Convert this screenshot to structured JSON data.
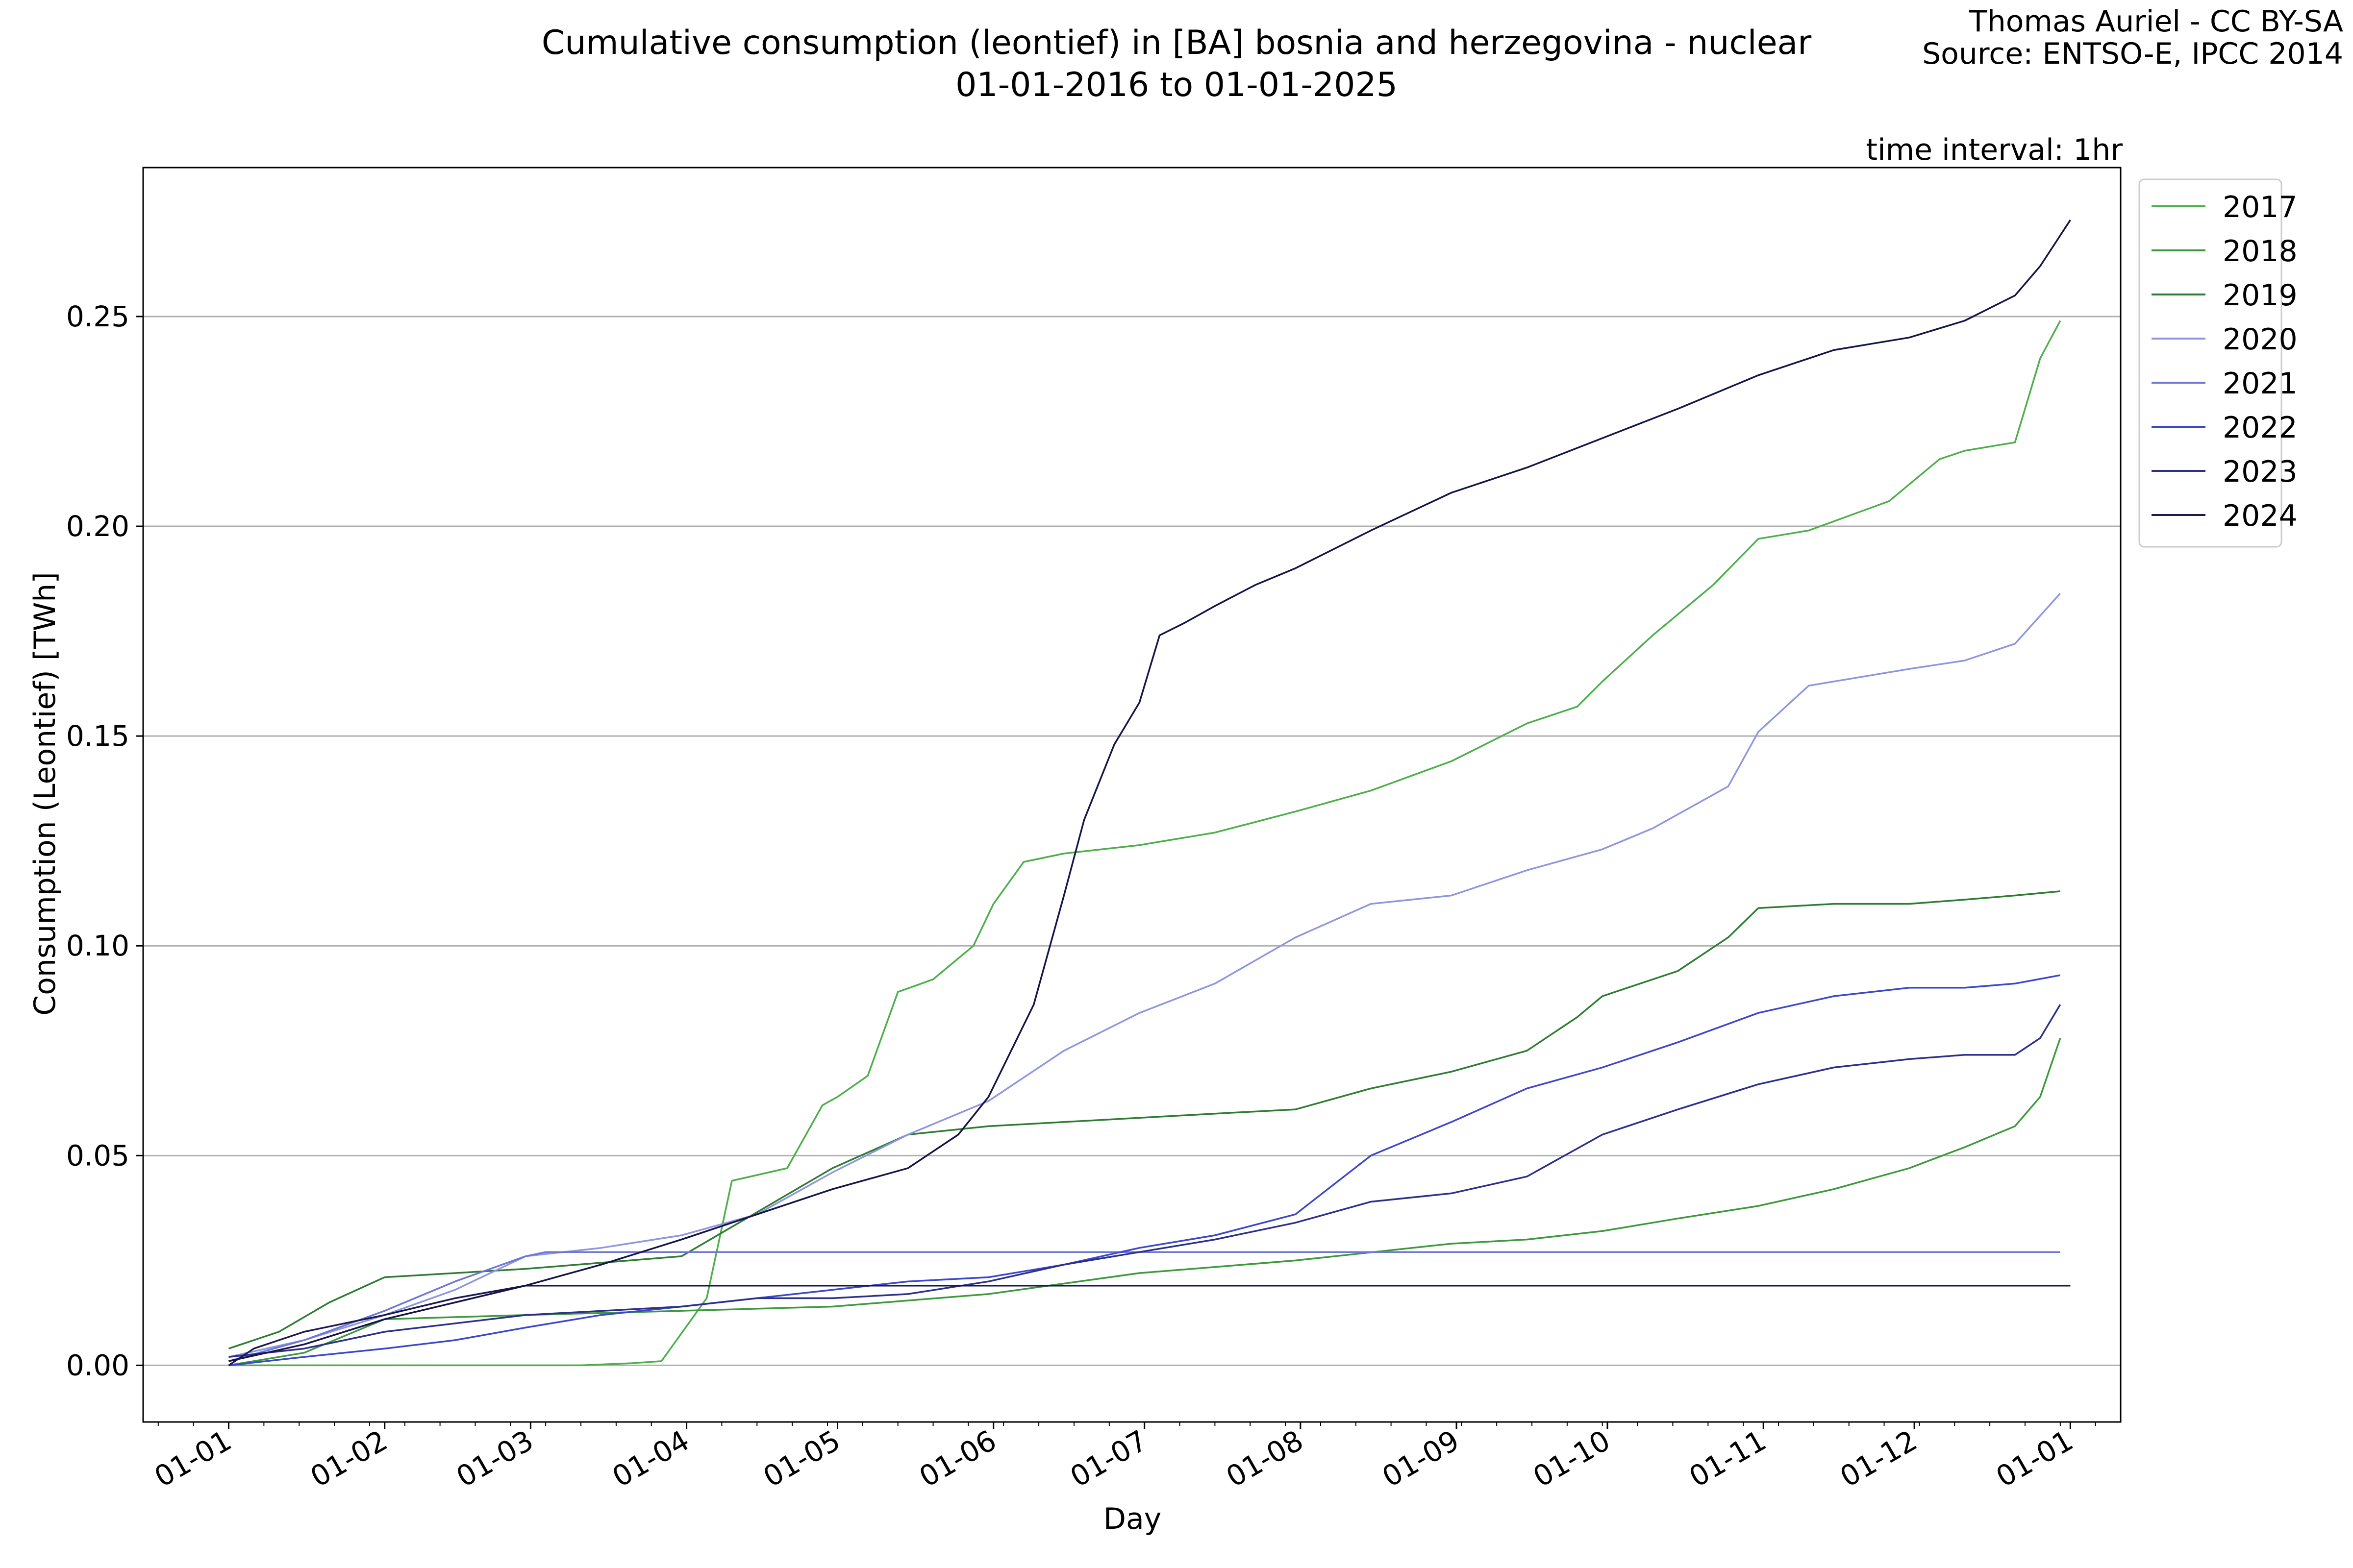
{
  "header": {
    "title_line1": "Cumulative consumption (leontief) in [BA] bosnia and herzegovina - nuclear",
    "title_line2": "01-01-2016 to 01-01-2025",
    "credit_line1": "Thomas Auriel - CC BY-SA",
    "credit_line2": "Source: ENTSO-E, IPCC 2014",
    "interval": "time interval: 1hr"
  },
  "chart_data": {
    "type": "line",
    "title": "Cumulative consumption (leontief) in [BA] bosnia and herzegovina - nuclear",
    "subtitle": "01-01-2016 to 01-01-2025",
    "xlabel": "Day",
    "ylabel": "Consumption (Leontief) [TWh]",
    "x_tick_labels": [
      "01-01",
      "01-02",
      "01-03",
      "01-04",
      "01-05",
      "01-06",
      "01-07",
      "01-08",
      "01-09",
      "01-10",
      "01-11",
      "01-12",
      "01-01"
    ],
    "y_ticks": [
      0.0,
      0.05,
      0.1,
      0.15,
      0.2,
      0.25
    ],
    "y_tick_labels": [
      "0.00",
      "0.05",
      "0.10",
      "0.15",
      "0.20",
      "0.25"
    ],
    "ylim": [
      -0.0135,
      0.2855
    ],
    "xlim_days": [
      -17,
      376
    ],
    "grid": "horizontal",
    "legend_position": "outside-top-right",
    "x_unit": "day of year",
    "series": [
      {
        "name": "2017",
        "color": "#4daf4a",
        "x": [
          0,
          15,
          31,
          45,
          59,
          70,
          80,
          86,
          95,
          100,
          111,
          118,
          121,
          127,
          133,
          140,
          148,
          152,
          158,
          166,
          181,
          196,
          212,
          227,
          243,
          258,
          268,
          273,
          283,
          295,
          304,
          314,
          330,
          340,
          345,
          355,
          360,
          364
        ],
        "y": [
          0.0,
          0.0,
          0.0,
          0.0,
          0.0,
          0.0,
          0.0005,
          0.001,
          0.016,
          0.044,
          0.047,
          0.062,
          0.064,
          0.069,
          0.089,
          0.092,
          0.1,
          0.11,
          0.12,
          0.122,
          0.124,
          0.127,
          0.132,
          0.137,
          0.144,
          0.153,
          0.157,
          0.163,
          0.174,
          0.186,
          0.197,
          0.199,
          0.206,
          0.216,
          0.218,
          0.22,
          0.24,
          0.249
        ]
      },
      {
        "name": "2018",
        "color": "#3c9a3c",
        "x": [
          0,
          15,
          31,
          59,
          90,
          120,
          151,
          181,
          212,
          243,
          258,
          273,
          288,
          304,
          319,
          334,
          345,
          355,
          360,
          364
        ],
        "y": [
          0.0,
          0.003,
          0.011,
          0.012,
          0.013,
          0.014,
          0.017,
          0.022,
          0.025,
          0.029,
          0.03,
          0.032,
          0.035,
          0.038,
          0.042,
          0.047,
          0.052,
          0.057,
          0.064,
          0.078
        ]
      },
      {
        "name": "2019",
        "color": "#2e7d32",
        "x": [
          0,
          10,
          20,
          31,
          45,
          59,
          90,
          120,
          135,
          151,
          166,
          181,
          196,
          212,
          227,
          243,
          258,
          268,
          273,
          288,
          298,
          304,
          319,
          334,
          345,
          355,
          364
        ],
        "y": [
          0.004,
          0.008,
          0.015,
          0.021,
          0.022,
          0.023,
          0.026,
          0.047,
          0.055,
          0.057,
          0.058,
          0.059,
          0.06,
          0.061,
          0.066,
          0.07,
          0.075,
          0.083,
          0.088,
          0.094,
          0.102,
          0.109,
          0.11,
          0.11,
          0.111,
          0.112,
          0.113
        ]
      },
      {
        "name": "2020",
        "color": "#8e96e0",
        "x": [
          0,
          15,
          31,
          45,
          59,
          74,
          90,
          105,
          120,
          135,
          151,
          166,
          181,
          196,
          212,
          227,
          243,
          258,
          273,
          283,
          298,
          304,
          314,
          334,
          345,
          355,
          364
        ],
        "y": [
          0.002,
          0.006,
          0.012,
          0.018,
          0.026,
          0.028,
          0.031,
          0.036,
          0.046,
          0.055,
          0.063,
          0.075,
          0.084,
          0.091,
          0.102,
          0.11,
          0.112,
          0.118,
          0.123,
          0.128,
          0.138,
          0.151,
          0.162,
          0.166,
          0.168,
          0.172,
          0.184
        ]
      },
      {
        "name": "2021",
        "color": "#6e76d6",
        "x": [
          0,
          15,
          31,
          45,
          59,
          63,
          90,
          120,
          151,
          181,
          212,
          243,
          273,
          304,
          334,
          364
        ],
        "y": [
          0.001,
          0.006,
          0.013,
          0.02,
          0.026,
          0.027,
          0.027,
          0.027,
          0.027,
          0.027,
          0.027,
          0.027,
          0.027,
          0.027,
          0.027,
          0.027
        ]
      },
      {
        "name": "2022",
        "color": "#3b48cc",
        "x": [
          0,
          15,
          31,
          45,
          59,
          74,
          90,
          105,
          120,
          135,
          151,
          166,
          181,
          196,
          212,
          227,
          243,
          258,
          273,
          288,
          304,
          319,
          334,
          345,
          355,
          364
        ],
        "y": [
          0.0,
          0.002,
          0.004,
          0.006,
          0.009,
          0.012,
          0.014,
          0.016,
          0.018,
          0.02,
          0.021,
          0.024,
          0.028,
          0.031,
          0.036,
          0.05,
          0.058,
          0.066,
          0.071,
          0.077,
          0.084,
          0.088,
          0.09,
          0.09,
          0.091,
          0.093
        ]
      },
      {
        "name": "2023",
        "color": "#2c2f8c",
        "x": [
          0,
          15,
          31,
          59,
          90,
          105,
          120,
          135,
          151,
          166,
          181,
          196,
          212,
          227,
          243,
          258,
          273,
          288,
          304,
          319,
          334,
          345,
          355,
          360,
          364
        ],
        "y": [
          0.002,
          0.004,
          0.008,
          0.012,
          0.014,
          0.016,
          0.016,
          0.017,
          0.02,
          0.024,
          0.027,
          0.03,
          0.034,
          0.039,
          0.041,
          0.045,
          0.055,
          0.061,
          0.067,
          0.071,
          0.073,
          0.074,
          0.074,
          0.078,
          0.086
        ]
      },
      {
        "name": "2024",
        "color": "#1a1a4e",
        "x": [
          0,
          5,
          10,
          15,
          31,
          45,
          59,
          62,
          90,
          120,
          135,
          151,
          166,
          181,
          190,
          196,
          212,
          227,
          243,
          258,
          273,
          288,
          304,
          319,
          334,
          345,
          355,
          360,
          366
        ],
        "y": [
          0.0,
          0.004,
          0.006,
          0.008,
          0.012,
          0.016,
          0.019,
          0.019,
          0.019,
          0.019,
          0.019,
          0.019,
          0.019,
          0.019,
          0.019,
          0.019,
          0.019,
          0.019,
          0.019,
          0.019,
          0.019,
          0.019,
          0.019,
          0.019,
          0.019,
          0.019,
          0.019,
          0.019,
          0.019
        ]
      },
      {
        "name": "2024",
        "color": "#141446",
        "x": [
          0,
          15,
          31,
          45,
          59,
          74,
          90,
          105,
          120,
          135,
          145,
          151,
          160,
          166,
          170,
          176,
          181,
          185,
          190,
          196,
          204,
          212,
          227,
          243,
          258,
          273,
          288,
          304,
          319,
          334,
          345,
          355,
          360,
          366
        ],
        "y": [
          0.001,
          0.005,
          0.011,
          0.015,
          0.019,
          0.024,
          0.03,
          0.036,
          0.042,
          0.047,
          0.055,
          0.064,
          0.086,
          0.112,
          0.13,
          0.148,
          0.158,
          0.174,
          0.177,
          0.181,
          0.186,
          0.19,
          0.199,
          0.208,
          0.214,
          0.221,
          0.228,
          0.236,
          0.242,
          0.245,
          0.249,
          0.255,
          0.262,
          0.273
        ]
      }
    ]
  }
}
